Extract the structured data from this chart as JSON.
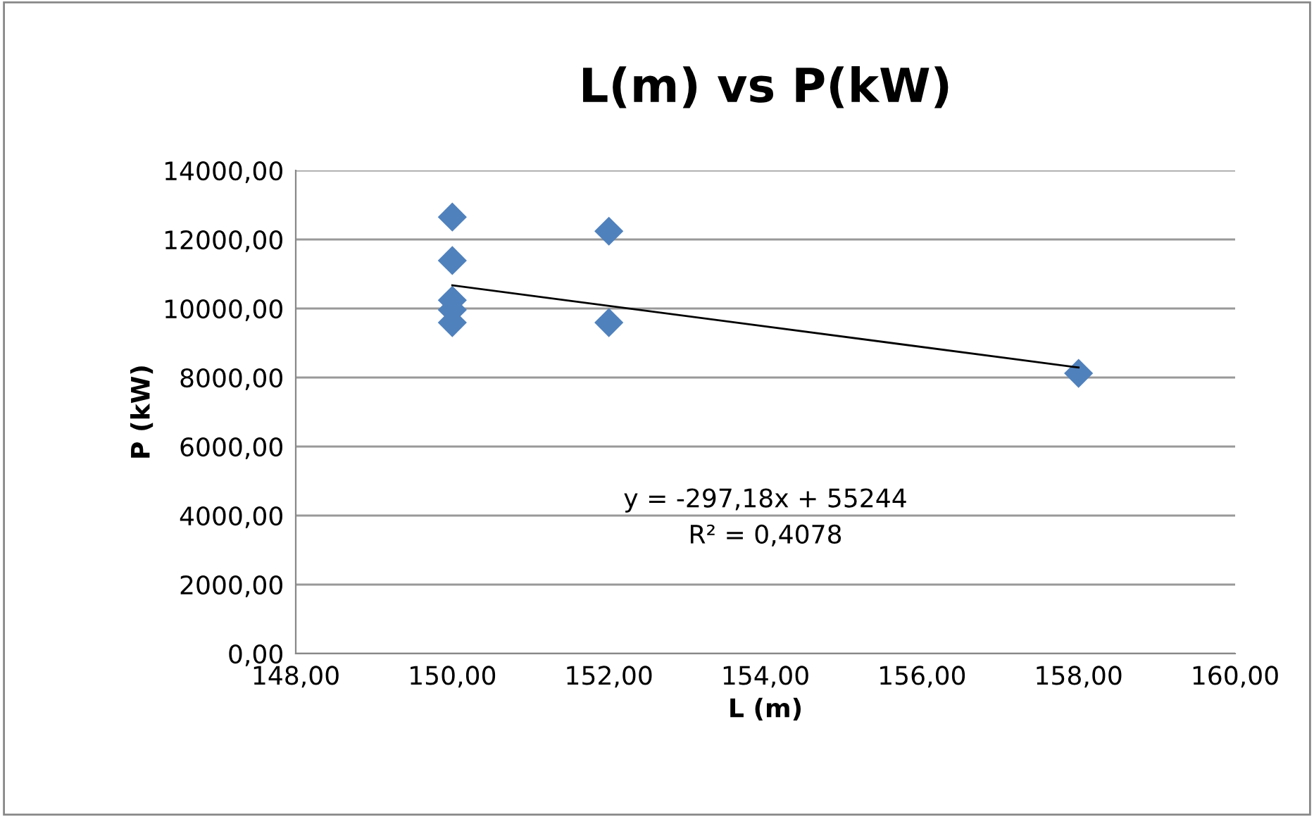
{
  "chart_data": {
    "type": "scatter",
    "title": "L(m) vs P(kW)",
    "xlabel": "L (m)",
    "ylabel": "P (kW)",
    "series": [
      {
        "color": "#4f81bd",
        "x": [
          150,
          150,
          150,
          150,
          150,
          152,
          152,
          158
        ],
        "values": [
          12650,
          11390,
          10240,
          9960,
          9590,
          12240,
          9590,
          8120
        ],
        "marker": "diamond"
      },
      {
        "type": "line",
        "color": "#000000",
        "x": [
          150,
          158
        ],
        "values": [
          10670,
          8290
        ],
        "marker": "none",
        "line_style": "solid"
      }
    ],
    "annotations": [
      "y = -297,18x + 55244\nR² = 0,4078"
    ],
    "xlim": [
      148,
      160
    ],
    "ylim": [
      0,
      14000
    ],
    "xticks": [
      {
        "value": 148,
        "label": "148,00"
      },
      {
        "value": 150,
        "label": "150,00"
      },
      {
        "value": 152,
        "label": "152,00"
      },
      {
        "value": 154,
        "label": "154,00"
      },
      {
        "value": 156,
        "label": "156,00"
      },
      {
        "value": 158,
        "label": "158,00"
      },
      {
        "value": 160,
        "label": "160,00"
      }
    ],
    "yticks": [
      {
        "value": 0,
        "label": "0,00"
      },
      {
        "value": 2000,
        "label": "2000,00"
      },
      {
        "value": 4000,
        "label": "4000,00"
      },
      {
        "value": 6000,
        "label": "6000,00"
      },
      {
        "value": 8000,
        "label": "8000,00"
      },
      {
        "value": 10000,
        "label": "10000,00"
      },
      {
        "value": 12000,
        "label": "12000,00"
      },
      {
        "value": 14000,
        "label": "14000,00"
      }
    ],
    "grid": "y",
    "legend": false
  }
}
